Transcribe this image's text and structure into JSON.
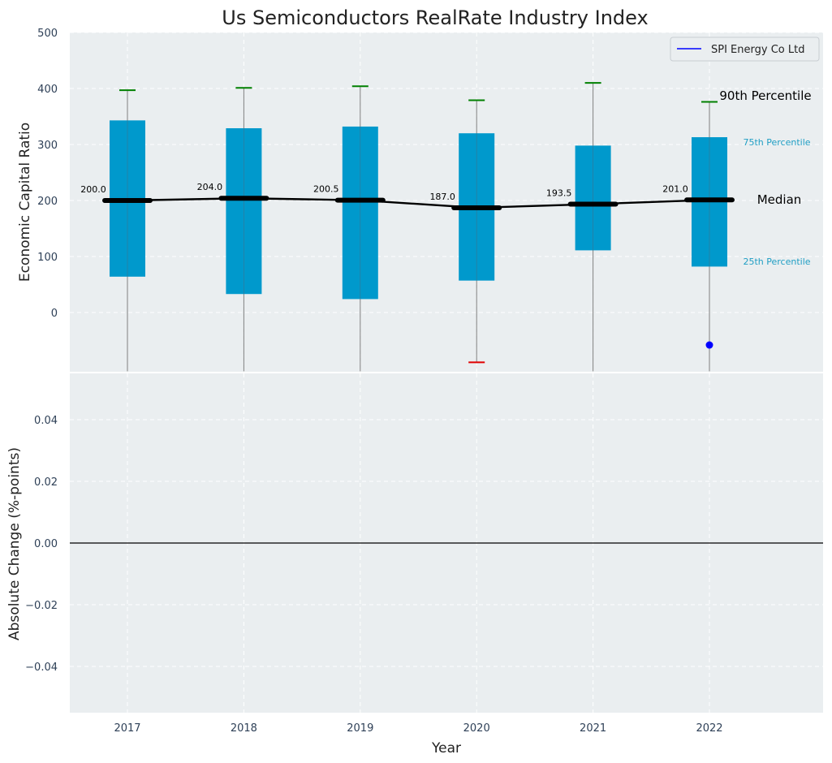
{
  "chart_data": [
    {
      "type": "box",
      "title": "Us Semiconductors RealRate Industry Index",
      "xlabel": "",
      "ylabel": "Economic Capital Ratio",
      "ylim": [
        -105,
        500
      ],
      "yticks": [
        0,
        100,
        200,
        300,
        400,
        500
      ],
      "categories": [
        "2017",
        "2018",
        "2019",
        "2020",
        "2021",
        "2022"
      ],
      "boxes": [
        {
          "year": "2017",
          "p10": -105,
          "p25": 64,
          "median": 200.0,
          "p75": 343,
          "p90": 397,
          "median_label": "200.0",
          "lower_cap": null,
          "lower_cap_color": null
        },
        {
          "year": "2018",
          "p10": -105,
          "p25": 33,
          "median": 204.0,
          "p75": 329,
          "p90": 401,
          "median_label": "204.0",
          "lower_cap": null,
          "lower_cap_color": null
        },
        {
          "year": "2019",
          "p10": -105,
          "p25": 24,
          "median": 200.5,
          "p75": 332,
          "p90": 404,
          "median_label": "200.5",
          "lower_cap": null,
          "lower_cap_color": null
        },
        {
          "year": "2020",
          "p10": -89,
          "p25": 57,
          "median": 187.0,
          "p75": 320,
          "p90": 379,
          "median_label": "187.0",
          "lower_cap": -89,
          "lower_cap_color": "#e00000"
        },
        {
          "year": "2021",
          "p10": -105,
          "p25": 111,
          "median": 193.5,
          "p75": 298,
          "p90": 410,
          "median_label": "193.5",
          "lower_cap": null,
          "lower_cap_color": null
        },
        {
          "year": "2022",
          "p10": -105,
          "p25": 82,
          "median": 201.0,
          "p75": 313,
          "p90": 376,
          "median_label": "201.0",
          "lower_cap": null,
          "lower_cap_color": null
        }
      ],
      "series": [
        {
          "name": "SPI Energy Co Ltd",
          "values": [
            null,
            null,
            null,
            null,
            null,
            -58
          ],
          "color": "#0000ff"
        }
      ],
      "median_line_color": "#000000",
      "box_color": "#0099cc",
      "upper_cap_color": "#008000",
      "whisker_color": "#808080",
      "annotations": {
        "p90": "90th Percentile",
        "p75": "75th Percentile",
        "median": "Median",
        "p25": "25th Percentile"
      },
      "legend": {
        "position": "top-right",
        "entries": [
          "SPI Energy Co Ltd"
        ]
      },
      "grid": true
    },
    {
      "type": "line",
      "xlabel": "Year",
      "ylabel": "Absolute Change (%-points)",
      "ylim": [
        -0.055,
        0.055
      ],
      "yticks": [
        -0.04,
        -0.02,
        0.0,
        0.02,
        0.04
      ],
      "ytick_labels": [
        "−0.04",
        "−0.02",
        "0.00",
        "0.02",
        "0.04"
      ],
      "categories": [
        "2017",
        "2018",
        "2019",
        "2020",
        "2021",
        "2022"
      ],
      "reference_line": 0.0,
      "grid": true
    }
  ],
  "colors": {
    "panel_bg": "#eaeef0",
    "grid": "#ffffff",
    "tick_text": "#2e4057",
    "box": "#0099cc",
    "cap_upper": "#008000",
    "cap_lower": "#e00000",
    "company": "#0000ff",
    "annotation_small": "#1f9ec4"
  }
}
